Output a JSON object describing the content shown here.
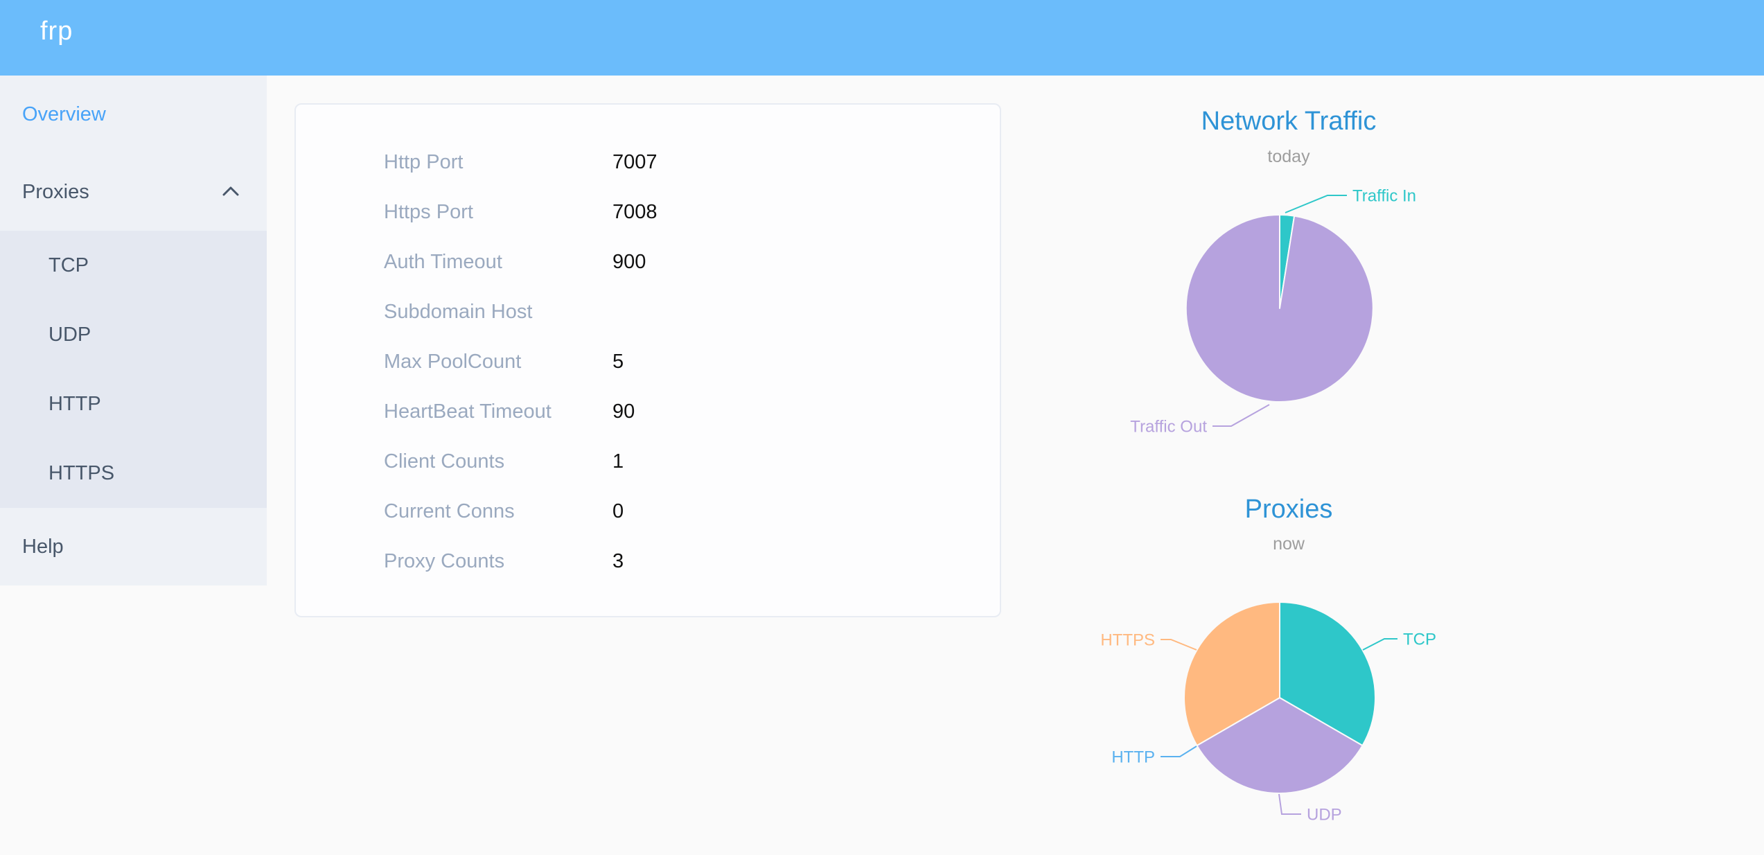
{
  "colors": {
    "header_bg": "#6bbcfb",
    "sidebar_bg": "#eef1f6",
    "submenu_bg": "#e4e8f1",
    "menu_text": "#48576a",
    "active_link": "#48a3f8",
    "chart_title": "#2e93d6",
    "chart_subtitle": "#9d9d9d",
    "label_gray": "#9aa9bf",
    "value_color": "#111111",
    "series_teal": "#2ec7c9",
    "series_purple": "#b6a2de",
    "series_blue": "#5ab1ef",
    "series_orange": "#ffb980"
  },
  "header": {
    "logo": "frp"
  },
  "sidebar": {
    "overview": {
      "label": "Overview",
      "active": true
    },
    "proxies": {
      "label": "Proxies",
      "expanded": true
    },
    "submenu_items": [
      "TCP",
      "UDP",
      "HTTP",
      "HTTPS"
    ],
    "help": {
      "label": "Help"
    }
  },
  "server_info": {
    "rows": [
      {
        "label": "Http Port",
        "value": "7007"
      },
      {
        "label": "Https Port",
        "value": "7008"
      },
      {
        "label": "Auth Timeout",
        "value": "900"
      },
      {
        "label": "Subdomain Host",
        "value": ""
      },
      {
        "label": "Max PoolCount",
        "value": "5"
      },
      {
        "label": "HeartBeat Timeout",
        "value": "90"
      },
      {
        "label": "Client Counts",
        "value": "1"
      },
      {
        "label": "Current Conns",
        "value": "0"
      },
      {
        "label": "Proxy Counts",
        "value": "3"
      }
    ]
  },
  "chart_data": [
    {
      "type": "pie",
      "title": "Network Traffic",
      "subtitle": "today",
      "legend_position": "none",
      "note": "slice proportions estimated from rendered pie (no numeric labels shown)",
      "series": [
        {
          "name": "Traffic In",
          "value": 2.5,
          "unit": "%",
          "color": "#2ec7c9"
        },
        {
          "name": "Traffic Out",
          "value": 97.5,
          "unit": "%",
          "color": "#b6a2de"
        }
      ]
    },
    {
      "type": "pie",
      "title": "Proxies",
      "subtitle": "now",
      "legend_position": "none",
      "series": [
        {
          "name": "TCP",
          "value": 1,
          "color": "#2ec7c9"
        },
        {
          "name": "UDP",
          "value": 1,
          "color": "#b6a2de"
        },
        {
          "name": "HTTP",
          "value": 0,
          "color": "#5ab1ef"
        },
        {
          "name": "HTTPS",
          "value": 1,
          "color": "#ffb980"
        }
      ]
    }
  ]
}
